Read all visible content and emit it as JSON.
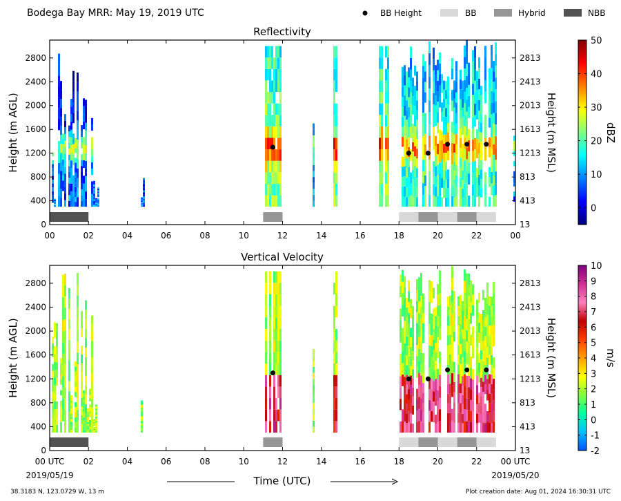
{
  "header": {
    "title": "Bodega Bay MRR:  May 19, 2019 UTC",
    "legend": [
      {
        "label": "BB Height",
        "color": "#000000",
        "kind": "dot"
      },
      {
        "label": "BB",
        "color": "#d9d9d9",
        "kind": "box"
      },
      {
        "label": "Hybrid",
        "color": "#969696",
        "kind": "box"
      },
      {
        "label": "NBB",
        "color": "#525252",
        "kind": "box"
      }
    ]
  },
  "footer": {
    "location": "38.3183 N, 123.0729 W, 13 m",
    "created": "Plot creation date: Aug 01, 2024 16:30:31 UTC",
    "start_date": "2019/05/19",
    "end_date": "2019/05/20",
    "time_label": "Time (UTC)"
  },
  "chart_data": [
    {
      "type": "heatmap",
      "title": "Reflectivity",
      "ylabel": "Height (m AGL)",
      "ylabel_right": "Height (m MSL)",
      "colorbar_label": "dBZ",
      "colorbar_ticks": [
        "50",
        "40",
        "30",
        "20",
        "10",
        "0"
      ],
      "colorbar_range": [
        -5,
        50
      ],
      "colorbar_colors": [
        "#00007f",
        "#0000ff",
        "#0080ff",
        "#00ffff",
        "#80ff80",
        "#ffff00",
        "#ff8000",
        "#ff0000",
        "#7f0000"
      ],
      "xlim": [
        0,
        24
      ],
      "ylim": [
        0,
        3100
      ],
      "xticks": [
        "00",
        "02",
        "04",
        "06",
        "08",
        "10",
        "12",
        "14",
        "16",
        "18",
        "20",
        "22",
        "00"
      ],
      "yticks": [
        0,
        400,
        800,
        1200,
        1600,
        2000,
        2400,
        2800
      ],
      "yticks_right": [
        "13",
        "413",
        "813",
        "1213",
        "1613",
        "2013",
        "2413",
        "2813"
      ],
      "bb_height": [
        {
          "time": 11.5,
          "height": 1300
        },
        {
          "time": 18.5,
          "height": 1200
        },
        {
          "time": 19.5,
          "height": 1200
        },
        {
          "time": 20.5,
          "height": 1350
        },
        {
          "time": 21.5,
          "height": 1350
        },
        {
          "time": 22.5,
          "height": 1350
        }
      ],
      "classification": [
        {
          "start": 0.0,
          "end": 2.0,
          "type": "NBB"
        },
        {
          "start": 11.0,
          "end": 12.0,
          "type": "Hybrid"
        },
        {
          "start": 18.0,
          "end": 19.0,
          "type": "BB"
        },
        {
          "start": 19.0,
          "end": 20.0,
          "type": "Hybrid"
        },
        {
          "start": 20.0,
          "end": 21.0,
          "type": "BB"
        },
        {
          "start": 21.0,
          "end": 22.0,
          "type": "Hybrid"
        },
        {
          "start": 22.0,
          "end": 23.0,
          "type": "BB"
        }
      ]
    },
    {
      "type": "heatmap",
      "title": "Vertical Velocity",
      "ylabel": "Height (m AGL)",
      "ylabel_right": "Height (m MSL)",
      "colorbar_label": "m/s",
      "colorbar_ticks": [
        "10",
        "9",
        "8",
        "7",
        "6",
        "5",
        "4",
        "3",
        "2",
        "1",
        "0",
        "-1",
        "-2"
      ],
      "colorbar_range": [
        -2,
        10
      ],
      "colorbar_colors": [
        "#0050ff",
        "#00c0ff",
        "#00ffa0",
        "#80ff40",
        "#ffff00",
        "#ffa000",
        "#ff4000",
        "#c00000",
        "#ff80c0",
        "#d03090",
        "#800080"
      ],
      "xlim": [
        0,
        24
      ],
      "ylim": [
        0,
        3100
      ],
      "xticks": [
        "00 UTC",
        "02",
        "04",
        "06",
        "08",
        "10",
        "12",
        "14",
        "16",
        "18",
        "20",
        "22",
        "00 UTC"
      ],
      "yticks": [
        0,
        400,
        800,
        1200,
        1600,
        2000,
        2400,
        2800
      ],
      "yticks_right": [
        "13",
        "413",
        "813",
        "1213",
        "1613",
        "2013",
        "2413",
        "2813"
      ],
      "bb_height": [
        {
          "time": 11.5,
          "height": 1300
        },
        {
          "time": 18.5,
          "height": 1200
        },
        {
          "time": 19.5,
          "height": 1200
        },
        {
          "time": 20.5,
          "height": 1350
        },
        {
          "time": 21.5,
          "height": 1350
        },
        {
          "time": 22.5,
          "height": 1350
        }
      ],
      "classification": [
        {
          "start": 0.0,
          "end": 2.0,
          "type": "NBB"
        },
        {
          "start": 11.0,
          "end": 12.0,
          "type": "Hybrid"
        },
        {
          "start": 18.0,
          "end": 19.0,
          "type": "BB"
        },
        {
          "start": 19.0,
          "end": 20.0,
          "type": "Hybrid"
        },
        {
          "start": 20.0,
          "end": 21.0,
          "type": "BB"
        },
        {
          "start": 21.0,
          "end": 22.0,
          "type": "Hybrid"
        },
        {
          "start": 22.0,
          "end": 23.0,
          "type": "BB"
        }
      ]
    }
  ]
}
